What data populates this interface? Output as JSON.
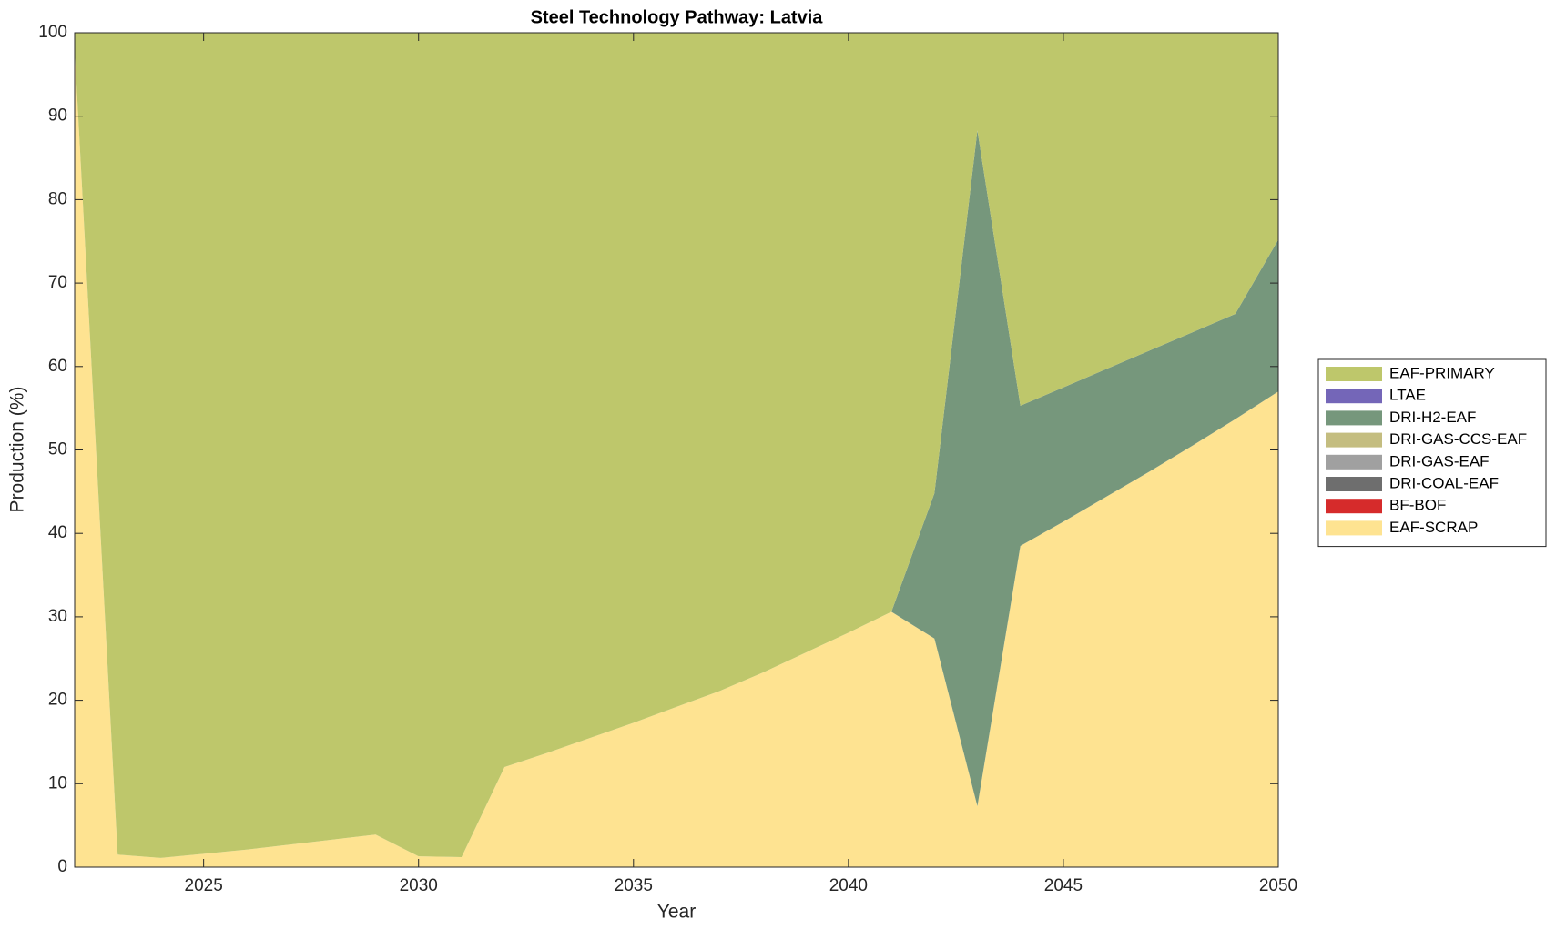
{
  "chart_data": {
    "type": "stacked_area",
    "title": "Steel Technology Pathway: Latvia",
    "x_label": "Year",
    "y_label": "Production (%)",
    "x": [
      2022,
      2023,
      2024,
      2025,
      2026,
      2027,
      2028,
      2029,
      2030,
      2031,
      2032,
      2033,
      2034,
      2035,
      2036,
      2037,
      2038,
      2039,
      2040,
      2041,
      2042,
      2043,
      2044,
      2045,
      2046,
      2047,
      2048,
      2049,
      2050
    ],
    "series": [
      {
        "name": "EAF-SCRAP",
        "color": "#fee391",
        "values": [
          98,
          1.5,
          1.1,
          1.6,
          2.1,
          2.7,
          3.3,
          3.9,
          1.3,
          1.2,
          12,
          13.7,
          15.5,
          17.3,
          19.2,
          21.1,
          23.3,
          25.7,
          28.1,
          30.6,
          27.4,
          7.3,
          38.5,
          41.4,
          44.4,
          47.4,
          50.5,
          53.7,
          57
        ]
      },
      {
        "name": "BF-BOF",
        "color": "#d62b2b",
        "values": [
          0,
          0,
          0,
          0,
          0,
          0,
          0,
          0,
          0,
          0,
          0,
          0,
          0,
          0,
          0,
          0,
          0,
          0,
          0,
          0,
          0,
          0,
          0,
          0,
          0,
          0,
          0,
          0,
          0
        ]
      },
      {
        "name": "DRI-COAL-EAF",
        "color": "#6e6e6e",
        "values": [
          0,
          0,
          0,
          0,
          0,
          0,
          0,
          0,
          0,
          0,
          0,
          0,
          0,
          0,
          0,
          0,
          0,
          0,
          0,
          0,
          0,
          0,
          0,
          0,
          0,
          0,
          0,
          0,
          0
        ]
      },
      {
        "name": "DRI-GAS-EAF",
        "color": "#a0a0a0",
        "values": [
          0,
          0,
          0,
          0,
          0,
          0,
          0,
          0,
          0,
          0,
          0,
          0,
          0,
          0,
          0,
          0,
          0,
          0,
          0,
          0,
          0,
          0,
          0,
          0,
          0,
          0,
          0,
          0,
          0
        ]
      },
      {
        "name": "DRI-GAS-CCS-EAF",
        "color": "#c4bd80",
        "values": [
          0,
          0,
          0,
          0,
          0,
          0,
          0,
          0,
          0,
          0,
          0,
          0,
          0,
          0,
          0,
          0,
          0,
          0,
          0,
          0,
          0,
          0,
          0,
          0,
          0,
          0,
          0,
          0,
          0
        ]
      },
      {
        "name": "DRI-H2-EAF",
        "color": "#76977c",
        "values": [
          0,
          0,
          0,
          0,
          0,
          0,
          0,
          0,
          0,
          0,
          0,
          0,
          0,
          0,
          0,
          0,
          0,
          0,
          0,
          0,
          17.4,
          81,
          16.8,
          16.1,
          15.3,
          14.5,
          13.6,
          12.6,
          18.2
        ]
      },
      {
        "name": "LTAE",
        "color": "#7466b8",
        "values": [
          0,
          0,
          0,
          0,
          0,
          0,
          0,
          0,
          0,
          0,
          0,
          0,
          0,
          0,
          0,
          0,
          0,
          0,
          0,
          0,
          0,
          0,
          0,
          0,
          0,
          0,
          0,
          0,
          0
        ]
      },
      {
        "name": "EAF-PRIMARY",
        "color": "#bec76b",
        "values": [
          2,
          98.5,
          98.9,
          98.4,
          97.9,
          97.3,
          96.7,
          96.1,
          98.7,
          98.8,
          88,
          86.3,
          84.5,
          82.7,
          80.8,
          78.9,
          76.7,
          74.3,
          71.9,
          69.4,
          55.2,
          11.7,
          44.7,
          42.5,
          40.3,
          38.1,
          35.9,
          33.7,
          24.8
        ]
      }
    ],
    "xlim": [
      2022,
      2050
    ],
    "xticks": [
      2025,
      2030,
      2035,
      2040,
      2045,
      2050
    ],
    "ylim": [
      0,
      100
    ],
    "yticks": [
      0,
      10,
      20,
      30,
      40,
      50,
      60,
      70,
      80,
      90,
      100
    ],
    "grid": false,
    "legend_position": "right"
  }
}
